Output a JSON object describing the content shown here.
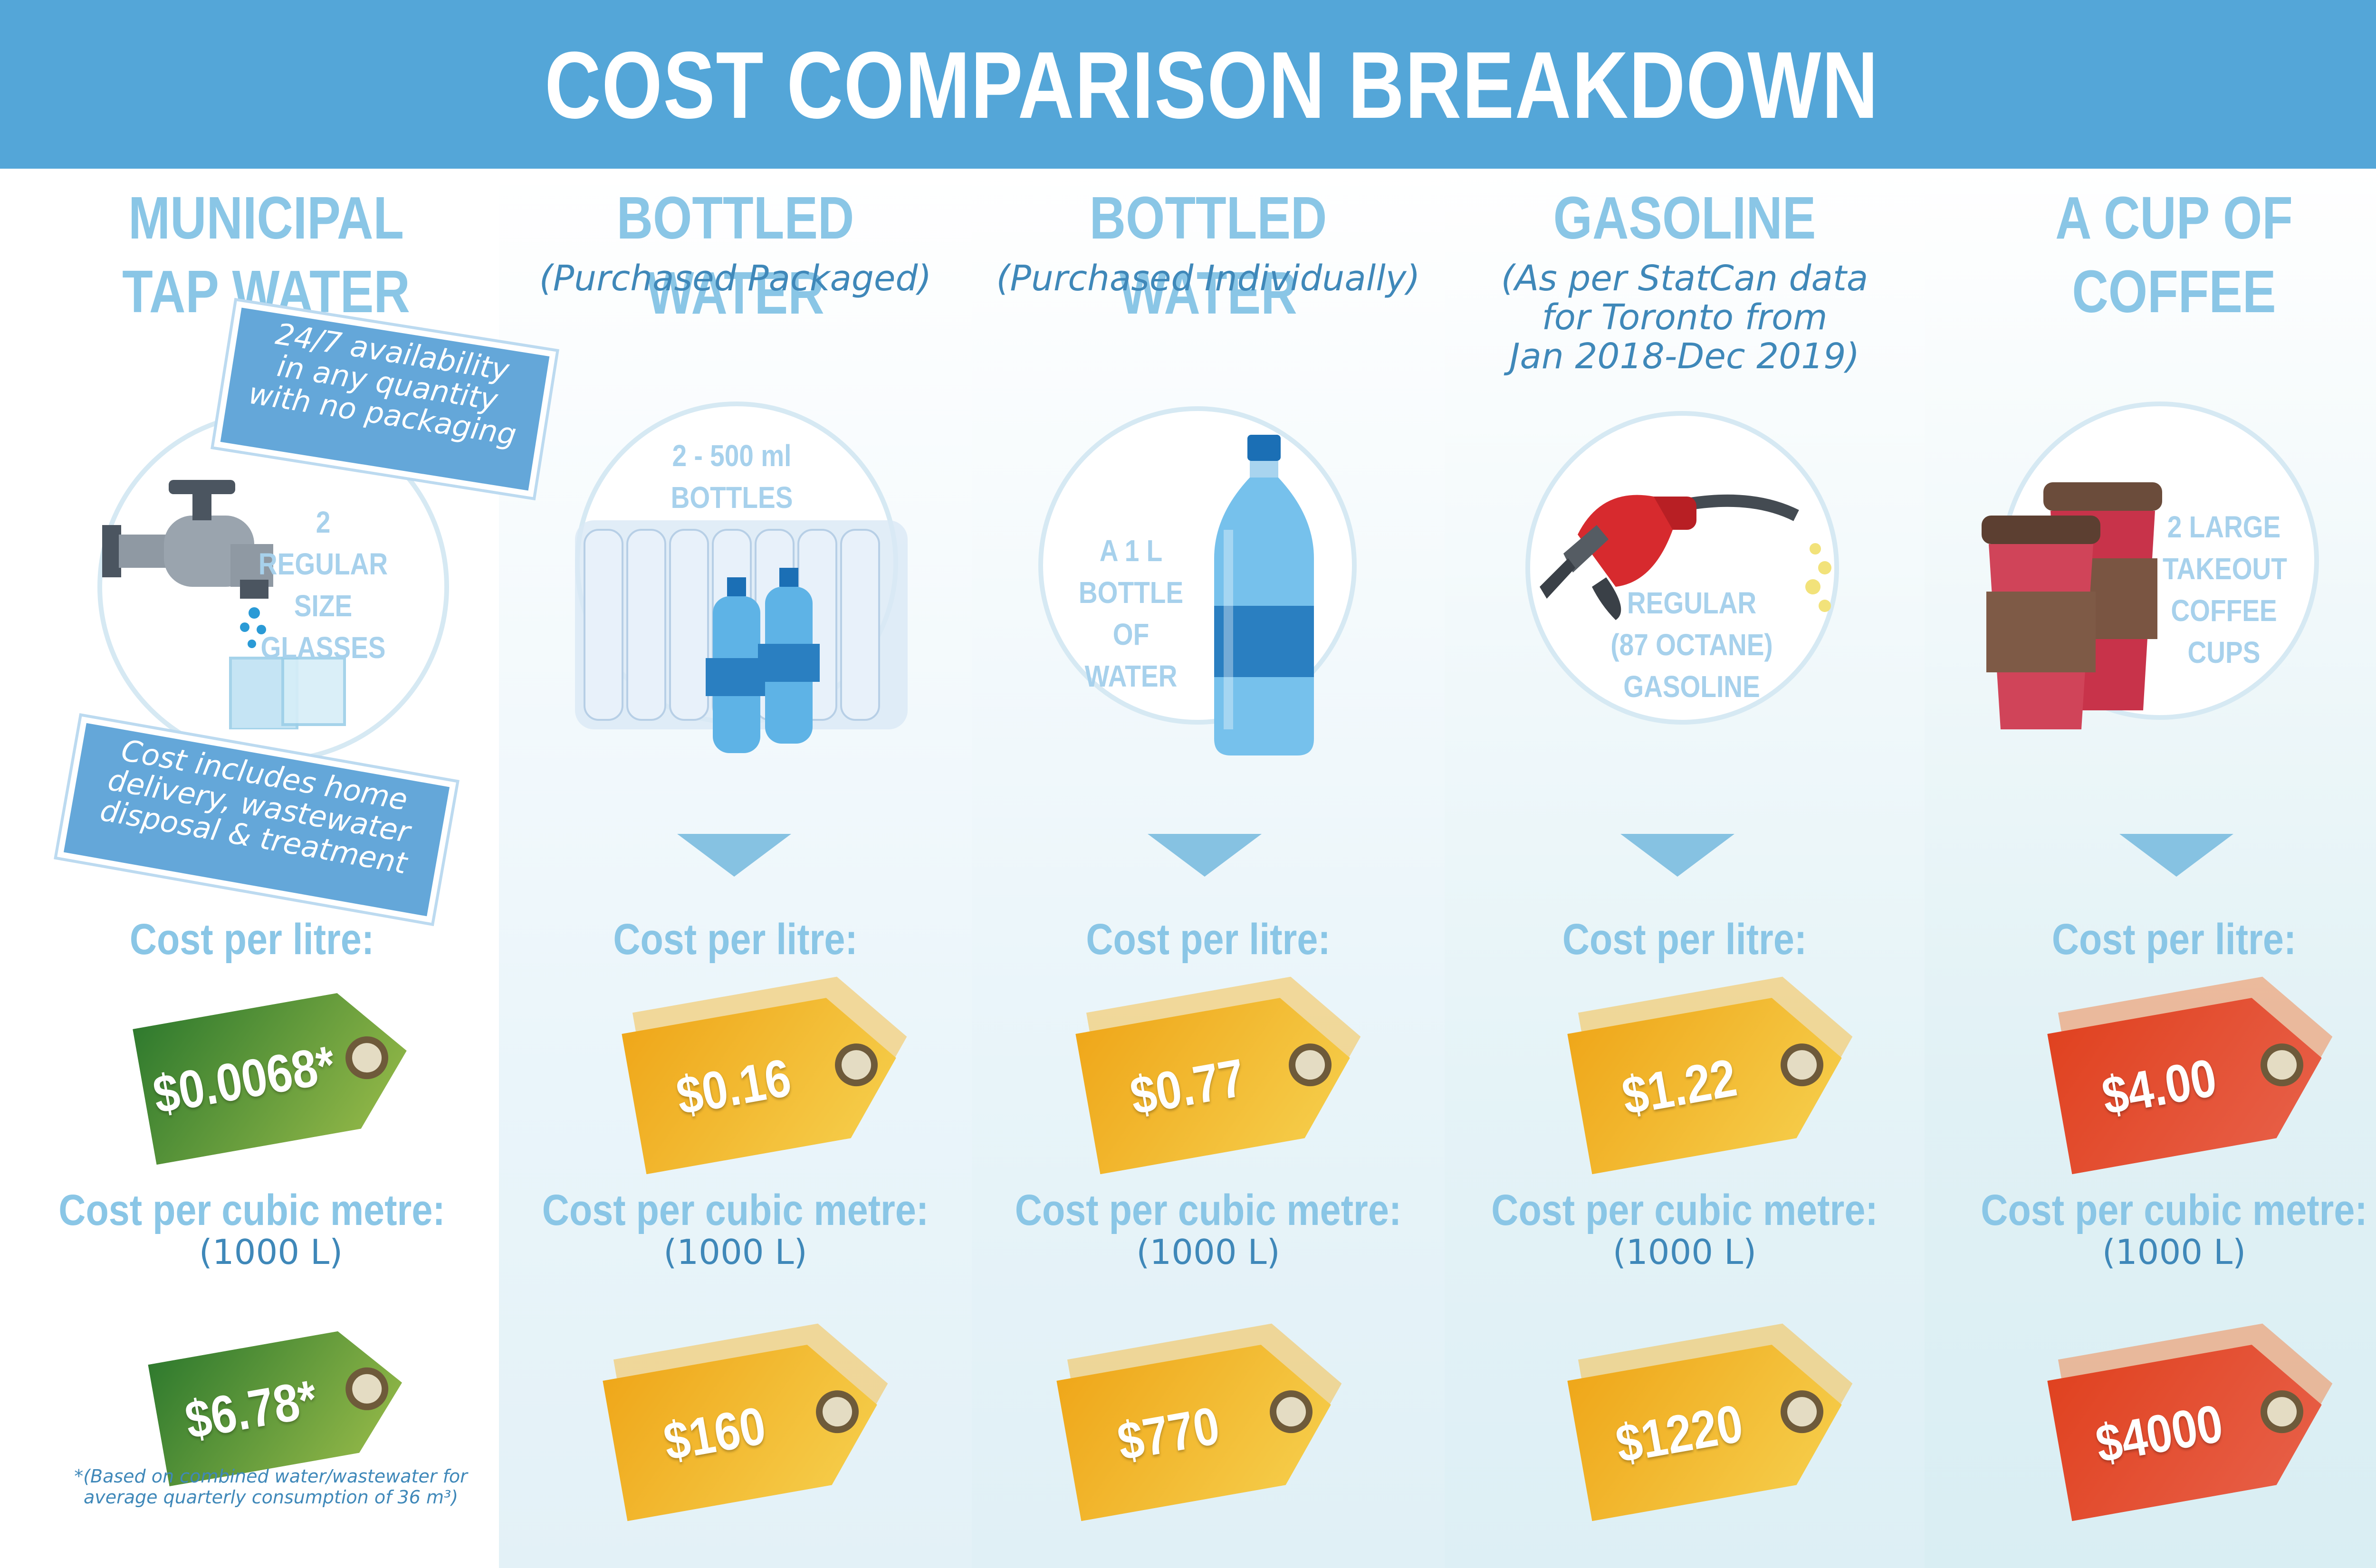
{
  "header": {
    "title": "COST COMPARISON BREAKDOWN"
  },
  "labels": {
    "cost_per_litre": "Cost per litre:",
    "cost_per_cubic_metre": "Cost per cubic metre:",
    "cubic_metre_note": "(1000 L)"
  },
  "columns": [
    {
      "title_line1": "MUNICIPAL",
      "title_line2": "TAP WATER",
      "circle_text": [
        "2 REGULAR",
        "SIZE",
        "GLASSES"
      ],
      "icon": "water-tap-icon",
      "price_per_litre": "$0.0068*",
      "price_per_cubic_metre": "$6.78*",
      "tag_color": "green"
    },
    {
      "title_line1": "BOTTLED WATER",
      "subtitle": "(Purchased Packaged)",
      "circle_text": [
        "2 - 500 ml",
        "BOTTLES"
      ],
      "icon": "water-bottle-pack-icon",
      "price_per_litre": "$0.16",
      "price_per_cubic_metre": "$160",
      "tag_color": "yellow"
    },
    {
      "title_line1": "BOTTLED WATER",
      "subtitle": "(Purchased Individually)",
      "circle_text": [
        "A 1 L",
        "BOTTLE OF",
        "WATER"
      ],
      "icon": "water-bottle-icon",
      "price_per_litre": "$0.77",
      "price_per_cubic_metre": "$770",
      "tag_color": "yellow"
    },
    {
      "title_line1": "GASOLINE",
      "subtitle_lines": [
        "(As per StatCan data",
        "for Toronto from",
        "Jan 2018-Dec 2019)"
      ],
      "circle_text": [
        "REGULAR",
        "(87 OCTANE)",
        "GASOLINE"
      ],
      "icon": "fuel-nozzle-icon",
      "price_per_litre": "$1.22",
      "price_per_cubic_metre": "$1220",
      "tag_color": "yellow"
    },
    {
      "title_line1": "A CUP OF",
      "title_line2": "COFFEE",
      "circle_text": [
        "2 LARGE",
        "TAKEOUT",
        "COFFEE",
        "CUPS"
      ],
      "icon": "coffee-cup-icon",
      "price_per_litre": "$4.00",
      "price_per_cubic_metre": "$4000",
      "tag_color": "red"
    }
  ],
  "bubbles": {
    "availability": [
      "24/7 availability",
      "in any quantity",
      "with no packaging"
    ],
    "cost_includes": [
      "Cost includes home",
      "delivery, wastewater",
      "disposal & treatment"
    ]
  },
  "footnote": [
    "*(Based on combined water/wastewater for",
    "average quarterly consumption of 36 m³)"
  ],
  "colors": {
    "header": "#54a6d8",
    "title_text": "#8ac6e6",
    "subtitle_text": "#3f88b9",
    "tag_green": "#2f7a2e",
    "tag_yellow": "#efa71a",
    "tag_red": "#e04220"
  }
}
